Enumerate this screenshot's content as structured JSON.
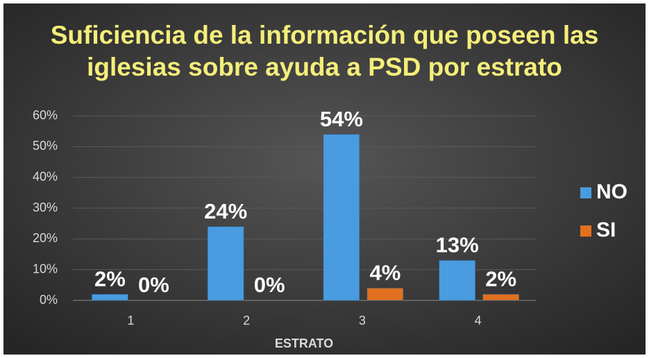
{
  "chart_data": {
    "type": "bar",
    "title": "Suficiencia de la información que poseen las iglesias sobre ayuda a PSD por estrato",
    "x_label": "ESTRATO",
    "categories": [
      "1",
      "2",
      "3",
      "4"
    ],
    "series": [
      {
        "name": "NO",
        "color": "#4a9be0",
        "values": [
          2,
          24,
          54,
          13
        ],
        "value_labels": [
          "2%",
          "24%",
          "54%",
          "13%"
        ]
      },
      {
        "name": "SI",
        "color": "#e2701e",
        "values": [
          0,
          0,
          4,
          2
        ],
        "value_labels": [
          "0%",
          "0%",
          "4%",
          "2%"
        ]
      }
    ],
    "ylim": [
      0,
      60
    ],
    "yticks": [
      {
        "value": 0,
        "label": "0%"
      },
      {
        "value": 10,
        "label": "10%"
      },
      {
        "value": 20,
        "label": "20%"
      },
      {
        "value": 30,
        "label": "30%"
      },
      {
        "value": 40,
        "label": "40%"
      },
      {
        "value": 50,
        "label": "50%"
      },
      {
        "value": 60,
        "label": "60%"
      }
    ],
    "grid": true,
    "legend": "right"
  }
}
